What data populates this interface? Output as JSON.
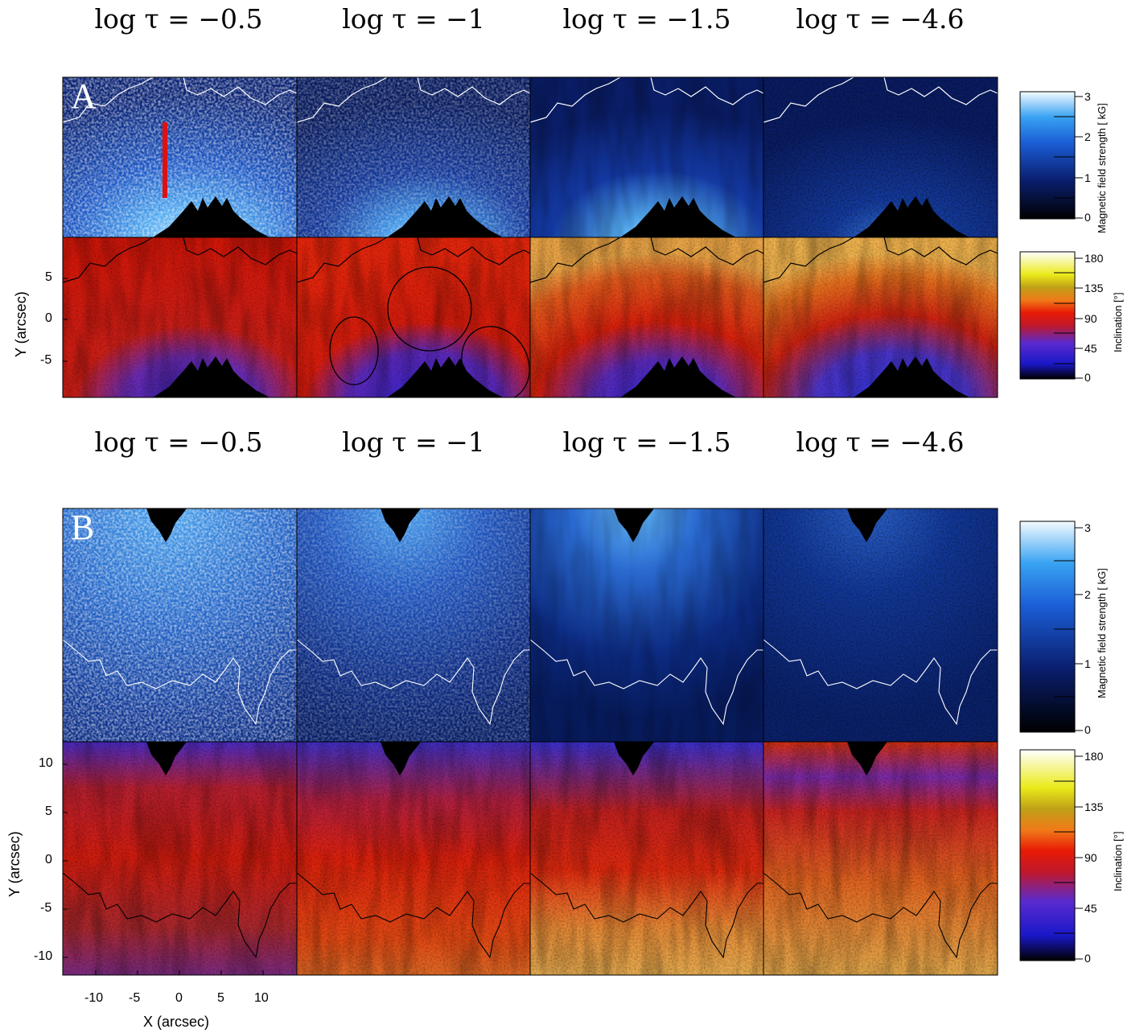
{
  "figure": {
    "column_headers": [
      "log τ = −0.5",
      "log τ = −1",
      "log τ = −1.5",
      "log τ = −4.6"
    ],
    "panels": [
      {
        "label": "A",
        "y_ticks": [
          "5",
          "0",
          "-5"
        ],
        "y_label": "Y (arcsec)",
        "rows": [
          {
            "quantity": "Magnetic field strength [ kG]",
            "colormap": "blue-white",
            "cbar_ticks": [
              "3",
              "2",
              "1",
              "0"
            ]
          },
          {
            "quantity": "Inclination [°]",
            "colormap": "black-blue-red-yellow-white",
            "cbar_ticks": [
              "180",
              "135",
              "90",
              "45",
              "0"
            ]
          }
        ]
      },
      {
        "label": "B",
        "y_ticks": [
          "10",
          "5",
          "0",
          "-5",
          "-10"
        ],
        "y_label": "Y (arcsec)",
        "x_ticks": [
          "-10",
          "-5",
          "0",
          "5",
          "10"
        ],
        "x_label": "X (arcsec)",
        "rows": [
          {
            "quantity": "Magnetic field strength [ kG]",
            "colormap": "blue-white",
            "cbar_ticks": [
              "3",
              "2",
              "1",
              "0"
            ]
          },
          {
            "quantity": "Inclination [°]",
            "colormap": "black-blue-red-yellow-white",
            "cbar_ticks": [
              "180",
              "135",
              "90",
              "45",
              "0"
            ]
          }
        ]
      }
    ],
    "colors": {
      "field_dark": "#06123a",
      "field_mid": "#1d4fb8",
      "field_bright": "#8fd0ff",
      "incl_blue": "#3b2fd0",
      "incl_red": "#d81a08",
      "incl_orange": "#e8a23a",
      "red_marker": "#e01010"
    }
  }
}
